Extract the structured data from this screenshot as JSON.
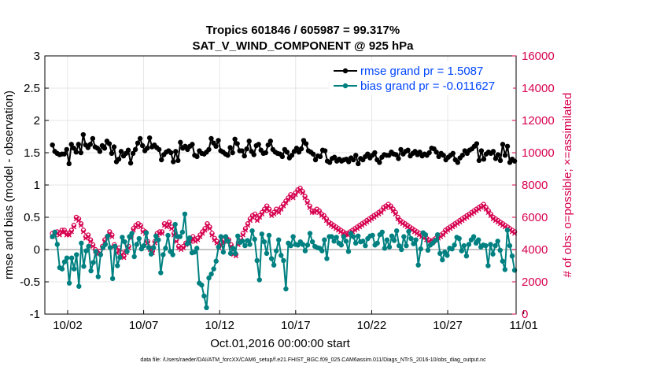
{
  "chart_data": {
    "type": "line",
    "title": "Tropics 601846 / 605987 = 99.317%",
    "subtitle": "SAT_V_WIND_COMPONENT @ 925 hPa",
    "xlabel": "Oct.01,2016 00:00:00 start",
    "ylabel": "rmse and bias (model - observation)",
    "y2label": "# of obs: o=possible; ×=assimilated",
    "footer": "data file: /Users/raeder/DAI/ATM_forcXX/CAM6_setup/f.e21.FHIST_BGC.f09_025.CAM6assim.011/Diags_NTrS_2016-10/obs_diag_output.nc",
    "xlim": [
      0.5,
      31.5
    ],
    "ylim": [
      -1,
      3
    ],
    "y2lim": [
      0,
      16000
    ],
    "x_ticks": [
      2,
      7,
      12,
      17,
      22,
      27,
      32
    ],
    "x_tick_labels": [
      "10/02",
      "10/07",
      "10/12",
      "10/17",
      "10/22",
      "10/27",
      "11/01"
    ],
    "y_ticks": [
      "-1",
      "-0.5",
      "0",
      "0.5",
      "1",
      "1.5",
      "2",
      "2.5",
      "3"
    ],
    "y2_ticks": [
      "0",
      "2000",
      "4000",
      "6000",
      "8000",
      "10000",
      "12000",
      "14000",
      "16000"
    ],
    "grid": true,
    "legend_position": "top-right",
    "colors": {
      "rmse": "#000000",
      "bias": "#008080",
      "obs": "#d6004f",
      "legend_text": "#0046ff",
      "zero_line": "#b0b0b0"
    },
    "series": [
      {
        "name": "rmse",
        "legend": "rmse grand pr = 1.5087",
        "values": [
          1.62,
          1.52,
          1.49,
          1.47,
          1.48,
          1.48,
          1.55,
          1.33,
          1.63,
          1.57,
          1.51,
          1.63,
          1.5,
          1.78,
          1.62,
          1.58,
          1.63,
          1.72,
          1.59,
          1.57,
          1.52,
          1.61,
          1.57,
          1.68,
          1.64,
          1.49,
          1.59,
          1.36,
          1.4,
          1.52,
          1.45,
          1.49,
          1.54,
          1.34,
          1.49,
          1.55,
          1.65,
          1.72,
          1.61,
          1.53,
          1.57,
          1.73,
          1.59,
          1.62,
          1.58,
          1.55,
          1.39,
          1.47,
          1.51,
          1.53,
          1.5,
          1.36,
          1.52,
          1.38,
          1.66,
          1.57,
          1.6,
          1.55,
          1.6,
          1.63,
          1.46,
          1.44,
          1.53,
          1.49,
          1.48,
          1.51,
          1.55,
          1.72,
          1.65,
          1.6,
          1.69,
          1.53,
          1.51,
          1.48,
          1.46,
          1.58,
          1.5,
          1.71,
          1.64,
          1.53,
          1.53,
          1.45,
          1.56,
          1.68,
          1.52,
          1.47,
          1.61,
          1.63,
          1.54,
          1.49,
          1.5,
          1.62,
          1.68,
          1.55,
          1.51,
          1.49,
          1.48,
          1.44,
          1.55,
          1.51,
          1.42,
          1.46,
          1.52,
          1.57,
          1.51,
          1.56,
          1.69,
          1.64,
          1.53,
          1.51,
          1.48,
          1.39,
          1.45,
          1.44,
          1.54,
          1.53,
          1.37,
          1.35,
          1.41,
          1.43,
          1.37,
          1.4,
          1.37,
          1.39,
          1.4,
          1.36,
          1.42,
          1.39,
          1.46,
          1.33,
          1.41,
          1.39,
          1.44,
          1.48,
          1.42,
          1.46,
          1.5,
          1.39,
          1.35,
          1.43,
          1.47,
          1.46,
          1.46,
          1.51,
          1.48,
          1.47,
          1.41,
          1.55,
          1.48,
          1.52,
          1.54,
          1.45,
          1.49,
          1.52,
          1.47,
          1.51,
          1.45,
          1.48,
          1.46,
          1.5,
          1.57,
          1.56,
          1.51,
          1.44,
          1.49,
          1.46,
          1.39,
          1.43,
          1.46,
          1.49,
          1.39,
          1.35,
          1.42,
          1.46,
          1.53,
          1.49,
          1.54,
          1.56,
          1.6,
          1.64,
          1.38,
          1.53,
          1.4,
          1.48,
          1.51,
          1.49,
          1.52,
          1.41,
          1.47,
          1.38,
          1.63,
          1.46,
          1.6,
          1.35,
          1.4,
          1.37
        ]
      },
      {
        "name": "bias",
        "legend": "bias grand pr = -0.011627",
        "values": [
          0.2,
          0.27,
          0.08,
          -0.28,
          -0.3,
          -0.19,
          -0.13,
          -0.52,
          -0.13,
          -0.3,
          -0.08,
          -0.57,
          0.1,
          -0.26,
          -0.02,
          0.05,
          -0.33,
          -0.2,
          -0.03,
          -0.42,
          -0.08,
          0.03,
          0.08,
          0.21,
          0.03,
          -0.45,
          0.05,
          -0.25,
          -0.12,
          0.19,
          0.12,
          -0.03,
          0.2,
          0.25,
          -0.11,
          0.08,
          0.17,
          0.01,
          0.06,
          0.26,
          0.03,
          -0.07,
          0.03,
          0.21,
          0.15,
          -0.36,
          -0.08,
          0.02,
          0.22,
          -0.03,
          -0.08,
          0.39,
          0.2,
          0.2,
          0.27,
          0.55,
          0.09,
          0.18,
          -0.05,
          -0.04,
          0.02,
          -0.52,
          -0.55,
          -0.72,
          -0.9,
          -0.44,
          -0.38,
          -0.3,
          -0.18,
          0.04,
          0.2,
          -0.04,
          0.2,
          0.13,
          -0.06,
          0.02,
          -0.06,
          0.21,
          0.11,
          0.13,
          0.06,
          0.14,
          0.08,
          0.29,
          0.16,
          -0.17,
          -0.47,
          0.24,
          0.12,
          -0.06,
          0.22,
          -0.14,
          -0.24,
          -0.02,
          0.15,
          -0.09,
          -0.17,
          -0.61,
          0.1,
          0.06,
          0.2,
          0.08,
          0.07,
          0.12,
          0.08,
          -0.02,
          0.07,
          0.25,
          0.12,
          0.05,
          0.03,
          0.02,
          -0.02,
          0.15,
          -0.14,
          0.2,
          0.2,
          0.13,
          0.19,
          0.1,
          0.07,
          0.2,
          0.13,
          -0.03,
          0.25,
          0.2,
          0.1,
          0.21,
          0.12,
          0.13,
          0.06,
          0.17,
          0.21,
          0.22,
          0.07,
          0.1,
          0.23,
          0.27,
          0.02,
          0.15,
          0.04,
          0.21,
          0.14,
          0.29,
          0.06,
          0.0,
          0.2,
          0.06,
          0.28,
          0.17,
          0.09,
          0.15,
          -0.24,
          0.01,
          0.26,
          0.23,
          -0.01,
          0.07,
          0.1,
          0.14,
          0.23,
          -0.06,
          -0.16,
          -0.04,
          -0.09,
          0.02,
          0.01,
          0.07,
          0.19,
          0.17,
          -0.02,
          0.06,
          -0.1,
          0.08,
          0.15,
          0.2,
          0.1,
          0.15,
          0.04,
          0.07,
          0.06,
          -0.25,
          0.08,
          -0.07,
          0.06,
          0.13,
          -0.01,
          -0.18,
          -0.31,
          0.3,
          0.06,
          -0.1,
          -0.32
        ]
      },
      {
        "name": "obs_possible",
        "marker": "o",
        "values": [
          5000,
          5000,
          5100,
          5000,
          5200,
          5200,
          5000,
          5000,
          5200,
          5500,
          6000,
          5900,
          5600,
          5200,
          4800,
          4900,
          4600,
          4300,
          4000,
          3800,
          3900,
          4200,
          4600,
          4800,
          5100,
          4900,
          4300,
          3900,
          4100,
          3800,
          3600,
          3900,
          4200,
          4800,
          5300,
          5500,
          5600,
          5500,
          5200,
          5100,
          4500,
          4100,
          3900,
          4500,
          5000,
          5100,
          5100,
          5600,
          5500,
          5700,
          5400,
          5000,
          4600,
          4200,
          4100,
          4200,
          4400,
          4500,
          4600,
          4800,
          4600,
          4700,
          4900,
          5100,
          5300,
          5600,
          5400,
          5000,
          4700,
          4500,
          4200,
          4400,
          4600,
          4700,
          4600,
          4300,
          3800,
          3700,
          4400,
          4700,
          5000,
          5300,
          5600,
          5900,
          6100,
          6200,
          5900,
          6100,
          6300,
          6500,
          6700,
          6500,
          6200,
          6300,
          6500,
          6400,
          6600,
          6800,
          7000,
          7200,
          7400,
          7300,
          7500,
          7700,
          7800,
          7600,
          7300,
          7000,
          6700,
          6400,
          6400,
          6500,
          6400,
          6200,
          6100,
          5900,
          5700,
          5600,
          5500,
          5400,
          5300,
          5200,
          5100,
          5000,
          5000,
          5100,
          5200,
          5300,
          5400,
          5500,
          5600,
          5700,
          5800,
          5900,
          6000,
          6100,
          6200,
          6300,
          6400,
          6600,
          6700,
          6800,
          6700,
          6500,
          6300,
          6000,
          5800,
          5700,
          5600,
          5500,
          5400,
          5300,
          5200,
          5100,
          5000,
          4900,
          4800,
          4700,
          4600,
          4500,
          4600,
          4700,
          4800,
          4900,
          5000,
          5200,
          5300,
          5400,
          5500,
          5600,
          5700,
          5800,
          5900,
          6000,
          6100,
          6200,
          6300,
          6400,
          6500,
          6600,
          6700,
          6800,
          6600,
          6400,
          6200,
          6000,
          5900,
          5800,
          5700,
          5600,
          5500,
          5400,
          5300,
          5200,
          5100
        ]
      },
      {
        "name": "obs_assimilated",
        "marker": "x",
        "values": [
          4800,
          4900,
          5000,
          4900,
          5100,
          5100,
          4900,
          4900,
          5100,
          5400,
          5900,
          5800,
          5500,
          5100,
          4700,
          4800,
          4500,
          4200,
          3900,
          3700,
          3800,
          4100,
          4500,
          4700,
          5000,
          4800,
          4200,
          3800,
          4000,
          3700,
          3500,
          3800,
          4100,
          4700,
          5200,
          5400,
          5500,
          5400,
          5100,
          5000,
          4400,
          4000,
          3800,
          4400,
          4900,
          5000,
          5000,
          5500,
          5400,
          5600,
          5300,
          4900,
          4500,
          4100,
          4000,
          4100,
          4300,
          4400,
          4500,
          4700,
          4500,
          4600,
          4800,
          5000,
          5200,
          5500,
          5300,
          4900,
          4600,
          4400,
          4100,
          4300,
          4500,
          4600,
          4500,
          4200,
          3700,
          3600,
          4300,
          4600,
          4900,
          5200,
          5500,
          5800,
          6000,
          6100,
          5800,
          6000,
          6200,
          6400,
          6600,
          6400,
          6100,
          6200,
          6400,
          6300,
          6500,
          6700,
          6900,
          7100,
          7300,
          7200,
          7400,
          7600,
          7700,
          7500,
          7200,
          6900,
          6600,
          6300,
          6300,
          6400,
          6300,
          6100,
          6000,
          5800,
          5600,
          5500,
          5400,
          5300,
          5200,
          5100,
          5000,
          4900,
          4900,
          5000,
          5100,
          5200,
          5300,
          5400,
          5500,
          5600,
          5700,
          5800,
          5900,
          6000,
          6100,
          6200,
          6300,
          6500,
          6600,
          6700,
          6600,
          6400,
          6200,
          5900,
          5700,
          5600,
          5500,
          5400,
          5300,
          5200,
          5100,
          5000,
          4900,
          4800,
          4700,
          4600,
          4500,
          4400,
          4500,
          4600,
          4700,
          4800,
          4900,
          5100,
          5200,
          5300,
          5400,
          5500,
          5600,
          5700,
          5800,
          5900,
          6000,
          6100,
          6200,
          6300,
          6400,
          6500,
          6600,
          6700,
          6500,
          6300,
          6100,
          5900,
          5800,
          5700,
          5600,
          5500,
          5400,
          5300,
          5200,
          5100,
          5000
        ]
      }
    ]
  }
}
